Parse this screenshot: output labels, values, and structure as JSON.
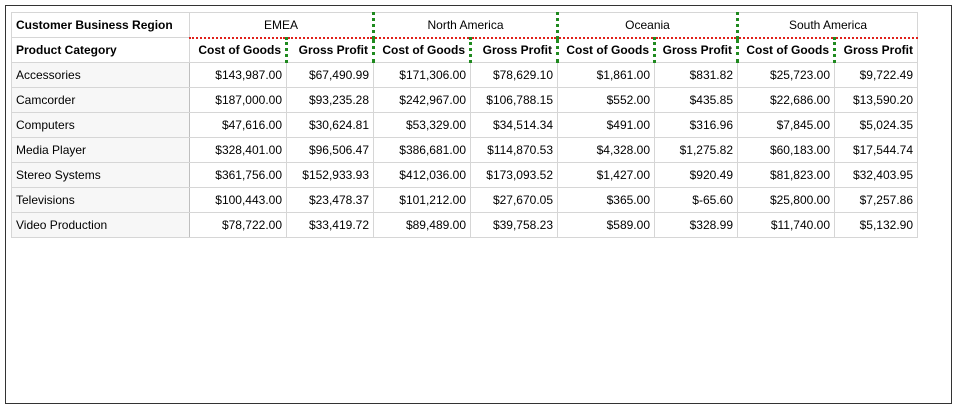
{
  "table": {
    "corner_region_label": "Customer Business Region",
    "corner_category_label": "Product Category",
    "regions": [
      "EMEA",
      "North America",
      "Oceania",
      "South America"
    ],
    "measures": [
      "Cost of Goods",
      "Gross Profit"
    ],
    "rows": [
      {
        "category": "Accessories",
        "values": [
          "$143,987.00",
          "$67,490.99",
          "$171,306.00",
          "$78,629.10",
          "$1,861.00",
          "$831.82",
          "$25,723.00",
          "$9,722.49"
        ]
      },
      {
        "category": "Camcorder",
        "values": [
          "$187,000.00",
          "$93,235.28",
          "$242,967.00",
          "$106,788.15",
          "$552.00",
          "$435.85",
          "$22,686.00",
          "$13,590.20"
        ]
      },
      {
        "category": "Computers",
        "values": [
          "$47,616.00",
          "$30,624.81",
          "$53,329.00",
          "$34,514.34",
          "$491.00",
          "$316.96",
          "$7,845.00",
          "$5,024.35"
        ]
      },
      {
        "category": "Media Player",
        "values": [
          "$328,401.00",
          "$96,506.47",
          "$386,681.00",
          "$114,870.53",
          "$4,328.00",
          "$1,275.82",
          "$60,183.00",
          "$17,544.74"
        ]
      },
      {
        "category": "Stereo Systems",
        "values": [
          "$361,756.00",
          "$152,933.93",
          "$412,036.00",
          "$173,093.52",
          "$1,427.00",
          "$920.49",
          "$81,823.00",
          "$32,403.95"
        ]
      },
      {
        "category": "Televisions",
        "values": [
          "$100,443.00",
          "$23,478.37",
          "$101,212.00",
          "$27,670.05",
          "$365.00",
          "$-65.60",
          "$25,800.00",
          "$7,257.86"
        ]
      },
      {
        "category": "Video Production",
        "values": [
          "$78,722.00",
          "$33,419.72",
          "$89,489.00",
          "$39,758.23",
          "$589.00",
          "$328.99",
          "$11,740.00",
          "$5,132.90"
        ]
      }
    ]
  },
  "colors": {
    "region_underline": "#e0201a",
    "column_separator": "#1f8a1f",
    "grid_line": "#d6d6d6"
  }
}
